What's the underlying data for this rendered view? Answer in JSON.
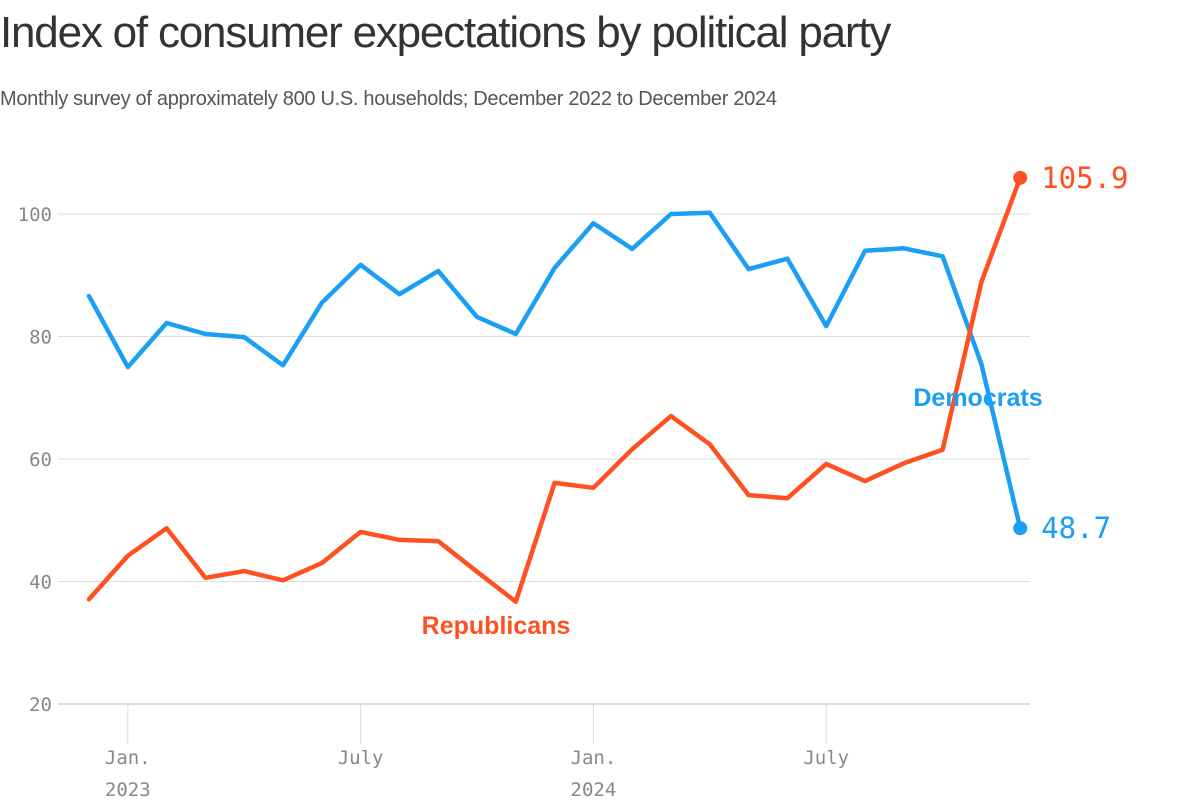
{
  "chart_data": {
    "type": "line",
    "title": "Index of consumer expectations by political party",
    "subtitle": "Monthly survey of approximately 800 U.S. households; December 2022 to December 2024",
    "xlabel": "",
    "ylabel": "",
    "ylim": [
      20,
      108
    ],
    "grid": true,
    "y_ticks": [
      20,
      40,
      60,
      80,
      100
    ],
    "x": [
      "2022-12",
      "2023-01",
      "2023-02",
      "2023-03",
      "2023-04",
      "2023-05",
      "2023-06",
      "2023-07",
      "2023-08",
      "2023-09",
      "2023-10",
      "2023-11",
      "2023-12",
      "2024-01",
      "2024-02",
      "2024-03",
      "2024-04",
      "2024-05",
      "2024-06",
      "2024-07",
      "2024-08",
      "2024-09",
      "2024-10",
      "2024-11",
      "2024-12"
    ],
    "x_ticks": [
      {
        "index": 1,
        "label": "Jan.",
        "sublabel": "2023"
      },
      {
        "index": 7,
        "label": "July",
        "sublabel": ""
      },
      {
        "index": 13,
        "label": "Jan.",
        "sublabel": "2024"
      },
      {
        "index": 19,
        "label": "July",
        "sublabel": ""
      }
    ],
    "series": [
      {
        "name": "Democrats",
        "color": "#1a9ff5",
        "end_label": "48.7",
        "values": [
          86.6,
          75.0,
          82.2,
          80.4,
          79.9,
          75.3,
          85.5,
          91.7,
          86.9,
          90.7,
          83.2,
          80.4,
          91.2,
          98.5,
          94.3,
          100.0,
          100.2,
          91.0,
          92.7,
          81.7,
          94.0,
          94.4,
          93.1,
          75.5,
          48.7
        ]
      },
      {
        "name": "Republicans",
        "color": "#ff5022",
        "end_label": "105.9",
        "values": [
          37.1,
          44.2,
          48.7,
          40.6,
          41.7,
          40.2,
          43.0,
          48.1,
          46.8,
          46.6,
          41.6,
          36.7,
          56.1,
          55.3,
          61.6,
          67.0,
          62.4,
          54.1,
          53.6,
          59.2,
          56.4,
          59.3,
          61.5,
          88.9,
          105.9
        ]
      }
    ]
  }
}
